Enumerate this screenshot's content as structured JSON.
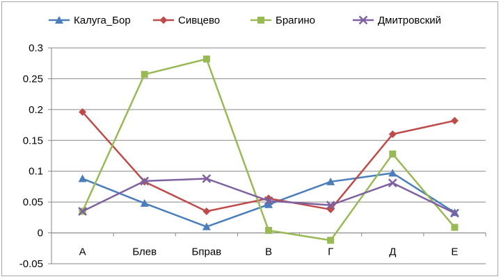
{
  "chart_data": {
    "type": "line",
    "title": "",
    "xlabel": "",
    "ylabel": "",
    "categories": [
      "А",
      "Блев",
      "Бправ",
      "В",
      "Г",
      "Д",
      "Е"
    ],
    "ylim": [
      -0.05,
      0.3
    ],
    "yticks": [
      "-0.05",
      "0",
      "0.05",
      "0.1",
      "0.15",
      "0.2",
      "0.25",
      "0.3"
    ],
    "grid": true,
    "legend_position": "top",
    "series": [
      {
        "name": "Калуга_Бор",
        "color": "#4a7ebb",
        "marker": "triangle",
        "values": [
          0.088,
          0.048,
          0.01,
          0.046,
          0.083,
          0.097,
          0.033
        ]
      },
      {
        "name": "Сивцево",
        "color": "#be4b48",
        "marker": "diamond",
        "values": [
          0.196,
          0.083,
          0.035,
          0.056,
          0.038,
          0.16,
          0.182
        ]
      },
      {
        "name": "Брагино",
        "color": "#98b954",
        "marker": "square",
        "values": [
          0.035,
          0.257,
          0.282,
          0.004,
          -0.012,
          0.128,
          0.009
        ]
      },
      {
        "name": "Дмитровский",
        "color": "#7d60a0",
        "marker": "x",
        "values": [
          0.035,
          0.084,
          0.088,
          0.052,
          0.045,
          0.081,
          0.032
        ]
      }
    ]
  }
}
